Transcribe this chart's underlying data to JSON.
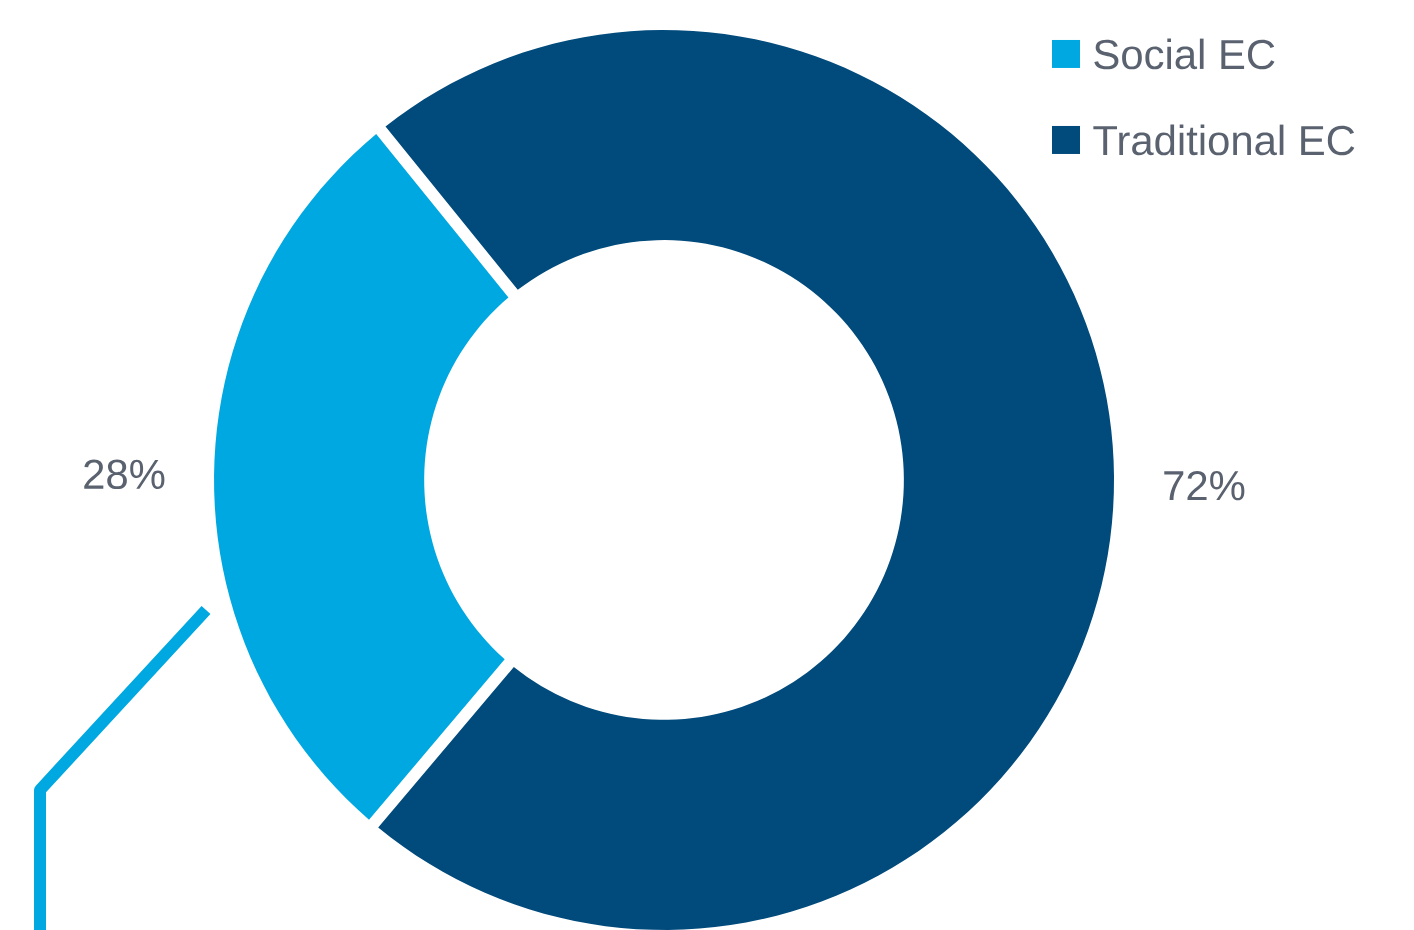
{
  "chart_data": {
    "type": "donut",
    "categories": [
      "Social EC",
      "Traditional EC"
    ],
    "values": [
      28,
      72
    ],
    "colors": [
      "#00a8e1",
      "#004a7c"
    ],
    "value_labels": [
      "28%",
      "72%"
    ],
    "legend": "top right"
  }
}
